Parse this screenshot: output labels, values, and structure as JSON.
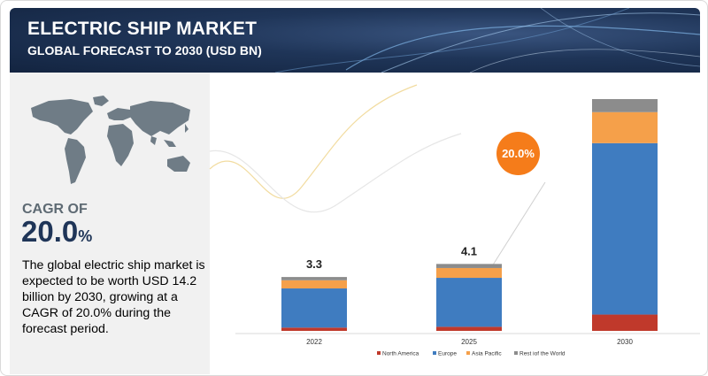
{
  "header": {
    "title": "ELECTRIC SHIP MARKET",
    "subtitle": "GLOBAL FORECAST TO 2030 (USD BN)"
  },
  "summary": {
    "cagr_label": "CAGR OF",
    "cagr_value": "20.0",
    "cagr_unit": "%",
    "description": "The global electric ship market is expected to be worth USD 14.2 billion by 2030, growing at a CAGR of 20.0% during the forecast period.",
    "badge": "20.0%"
  },
  "colors": {
    "header_bg": "#1f3558",
    "map": "#6f7c86",
    "accent_orange": "#f57c1a"
  },
  "chart_data": {
    "type": "bar",
    "stacked": true,
    "categories": [
      "2022",
      "2025",
      "2030"
    ],
    "totals": [
      3.3,
      4.1,
      14.2
    ],
    "total_labels": [
      "3.3",
      "4.1",
      ""
    ],
    "series": [
      {
        "name": "North America",
        "color": "#c0392b",
        "values": [
          0.2,
          0.25,
          1.0
        ]
      },
      {
        "name": "Europe",
        "color": "#3f7cc0",
        "values": [
          2.4,
          3.0,
          10.5
        ]
      },
      {
        "name": "Asia Pacific",
        "color": "#f5a04a",
        "values": [
          0.5,
          0.6,
          1.9
        ]
      },
      {
        "name": "Rest iof the World",
        "color": "#8c8c8c",
        "values": [
          0.2,
          0.25,
          0.8
        ]
      }
    ],
    "ylim": [
      0,
      14.2
    ],
    "grid": false,
    "legend": "bottom-center"
  }
}
